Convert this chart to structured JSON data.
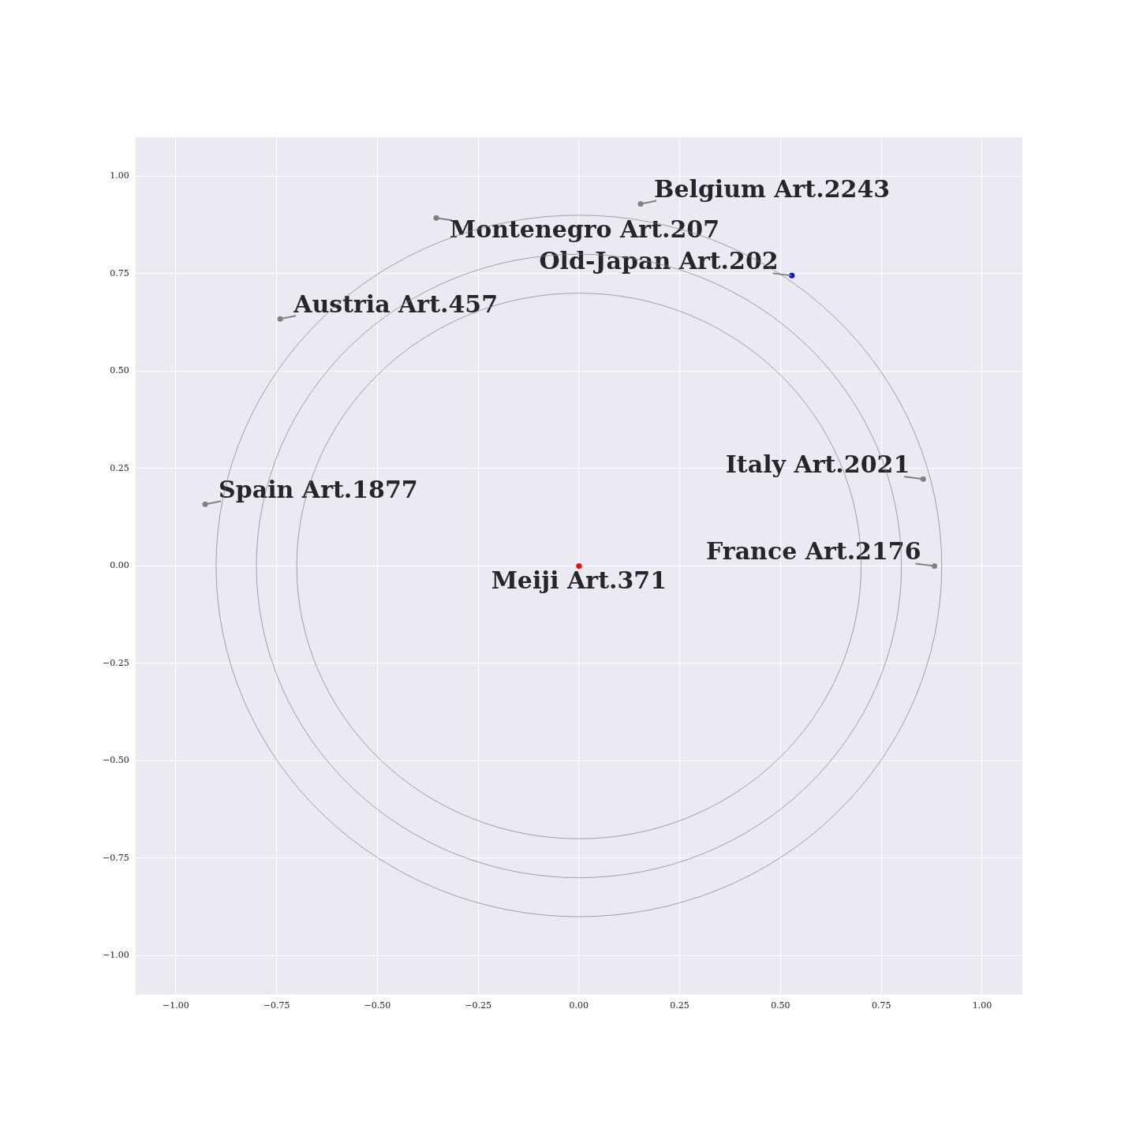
{
  "chart_data": {
    "type": "scatter",
    "xlim": [
      -1.1,
      1.1
    ],
    "ylim": [
      -1.1,
      1.1
    ],
    "xticks": [
      {
        "value": -1,
        "label": "−1.00"
      },
      {
        "value": -0.75,
        "label": "−0.75"
      },
      {
        "value": -0.5,
        "label": "−0.50"
      },
      {
        "value": -0.25,
        "label": "−0.25"
      },
      {
        "value": 0,
        "label": "0.00"
      },
      {
        "value": 0.25,
        "label": "0.25"
      },
      {
        "value": 0.5,
        "label": "0.50"
      },
      {
        "value": 0.75,
        "label": "0.75"
      },
      {
        "value": 1,
        "label": "1.00"
      }
    ],
    "yticks": [
      {
        "value": -1,
        "label": "−1.00"
      },
      {
        "value": -0.75,
        "label": "−0.75"
      },
      {
        "value": -0.5,
        "label": "−0.50"
      },
      {
        "value": -0.25,
        "label": "−0.25"
      },
      {
        "value": 0,
        "label": "0.00"
      },
      {
        "value": 0.25,
        "label": "0.25"
      },
      {
        "value": 0.5,
        "label": "0.50"
      },
      {
        "value": 0.75,
        "label": "0.75"
      },
      {
        "value": 1,
        "label": "1.00"
      }
    ],
    "grid": true,
    "legend": false,
    "marker": "circle",
    "series": [
      {
        "type": "scatter",
        "x": [
          0,
          0.528,
          0.153,
          -0.354,
          -0.741,
          -0.927,
          0.854,
          0.882
        ],
        "values": [
          0,
          0.745,
          0.929,
          0.893,
          0.634,
          0.158,
          0.223,
          0
        ],
        "colors": [
          "#ff0000",
          "#0000ff",
          "#808080",
          "#808080",
          "#808080",
          "#808080",
          "#808080",
          "#808080"
        ]
      }
    ],
    "annotations": [
      {
        "text": "Meiji Art.371",
        "x": 0,
        "y": 0
      },
      {
        "text": "Old-Japan Art.202",
        "x": 0.528,
        "y": 0.745
      },
      {
        "text": "Belgium Art.2243",
        "x": 0.153,
        "y": 0.929
      },
      {
        "text": "Montenegro Art.207",
        "x": -0.354,
        "y": 0.893
      },
      {
        "text": "Austria Art.457",
        "x": -0.741,
        "y": 0.634
      },
      {
        "text": "Spain Art.1877",
        "x": -0.927,
        "y": 0.158
      },
      {
        "text": "Italy Art.2021",
        "x": 0.854,
        "y": 0.223
      },
      {
        "text": "France Art.2176",
        "x": 0.882,
        "y": 0
      }
    ]
  }
}
